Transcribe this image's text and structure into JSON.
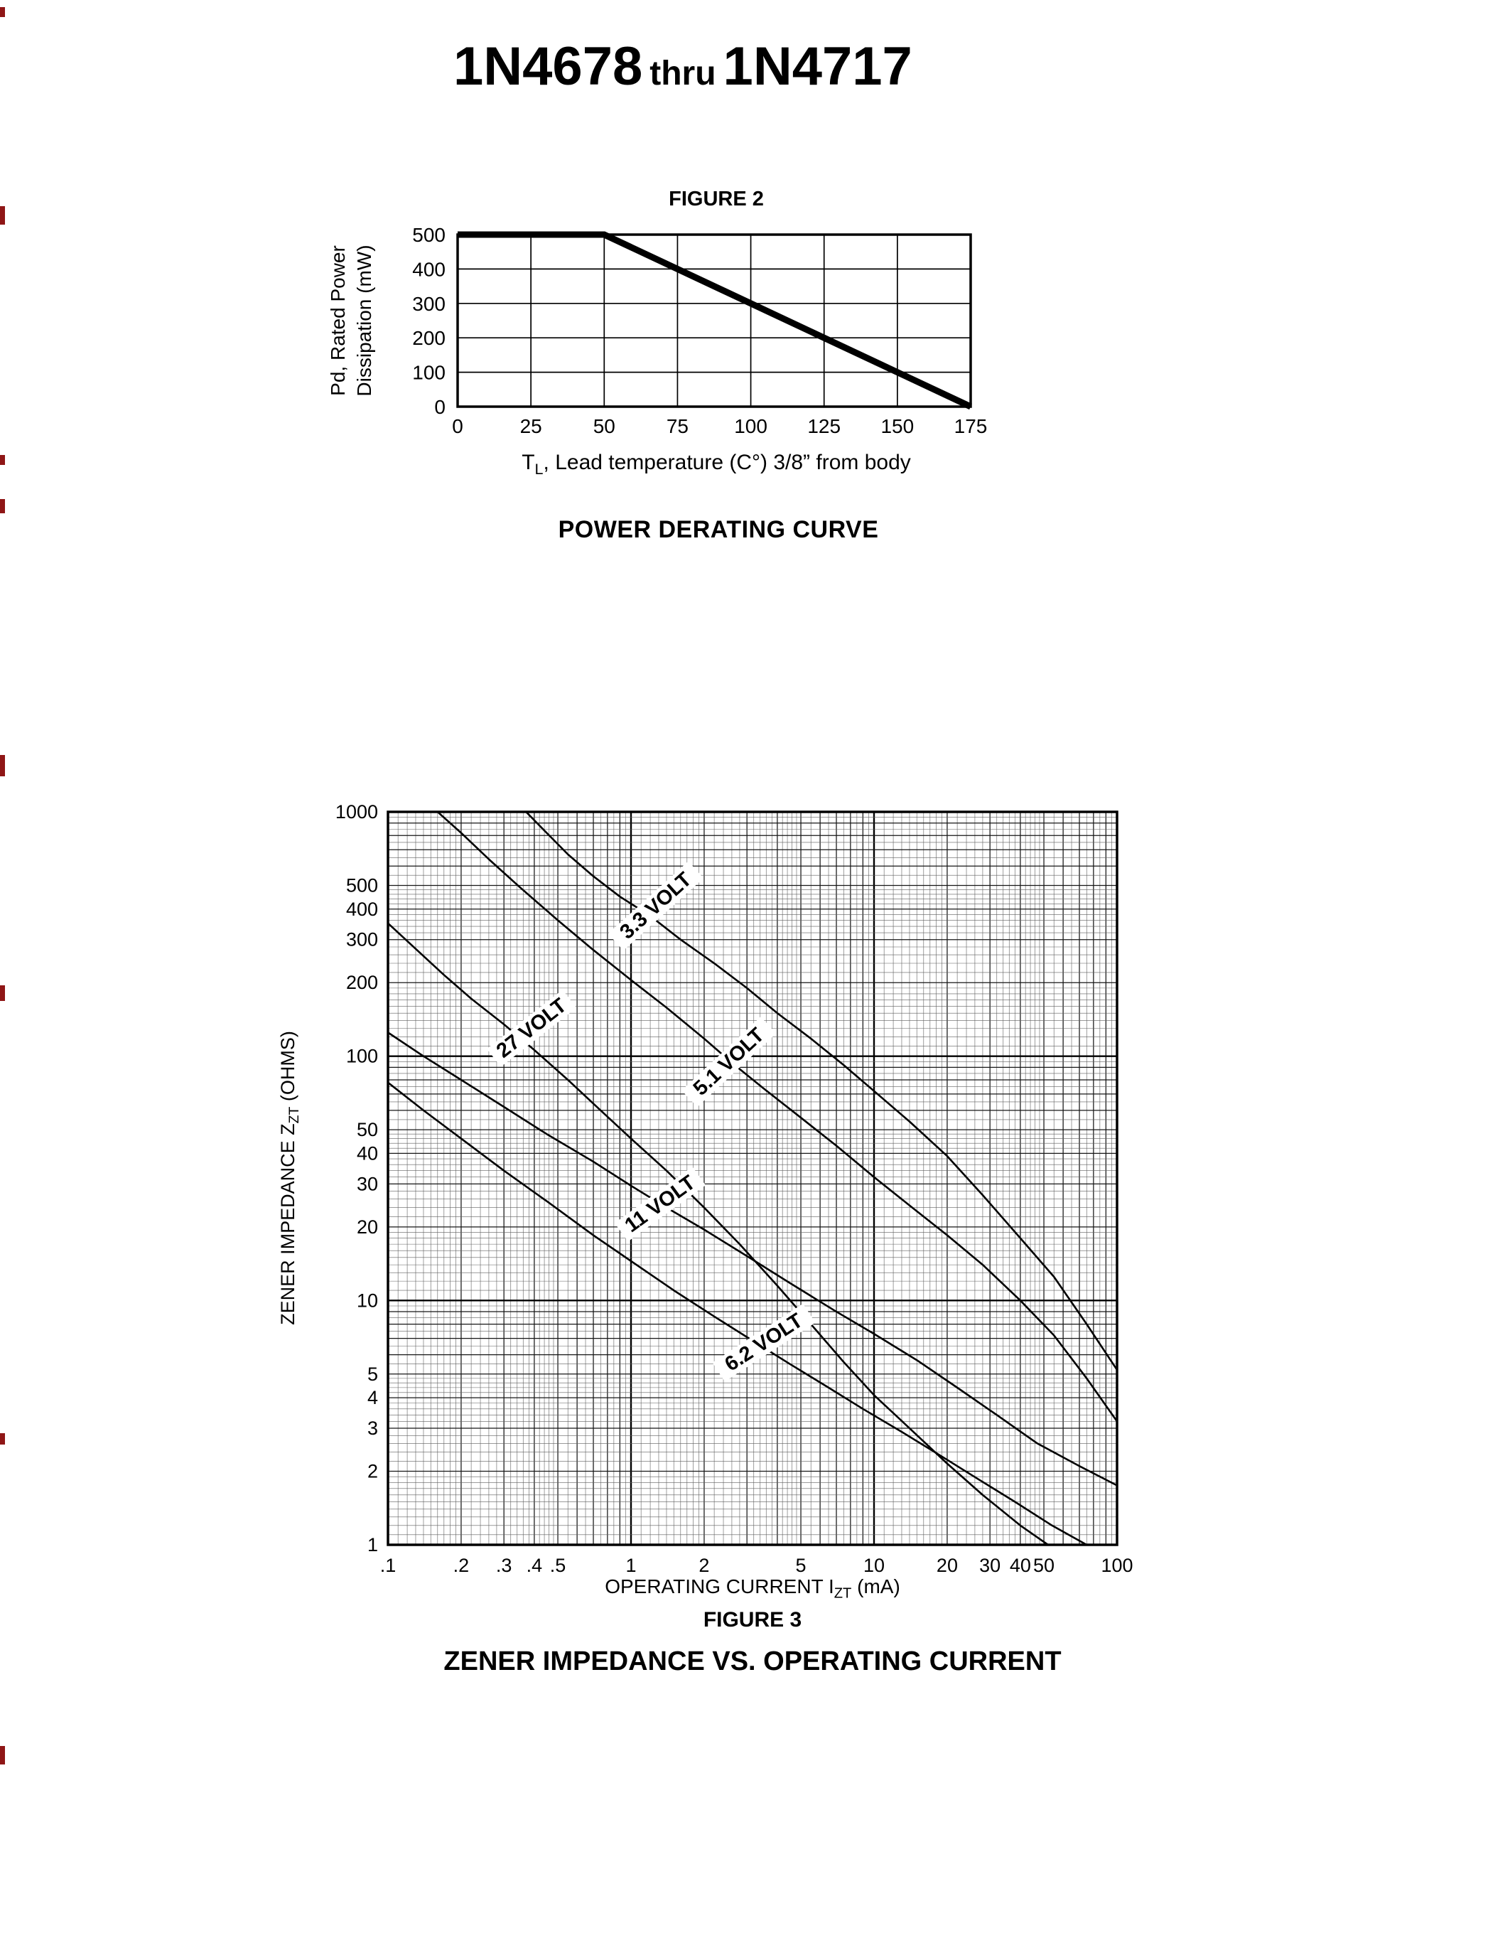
{
  "page": {
    "title": {
      "part1": "1N4678",
      "thru": "thru",
      "part2": "1N4717"
    },
    "artifact_color": "#8f1616",
    "artifacts": [
      {
        "y": 10,
        "h": 14
      },
      {
        "y": 290,
        "h": 26
      },
      {
        "y": 640,
        "h": 14
      },
      {
        "y": 702,
        "h": 20
      },
      {
        "y": 1062,
        "h": 30
      },
      {
        "y": 1386,
        "h": 22
      },
      {
        "y": 2016,
        "h": 16
      },
      {
        "y": 2456,
        "h": 26
      }
    ]
  },
  "figure2": {
    "title": "FIGURE 2",
    "ylabel_line1": "Pd, Rated Power",
    "ylabel_line2": "Dissipation (mW)",
    "xlabel_pre": "T",
    "xlabel_sub": "L",
    "xlabel_post": ", Lead temperature (C°) 3/8” from body",
    "caption": "POWER DERATING CURVE"
  },
  "figure3": {
    "title": "FIGURE 3",
    "ylabel_pre": "ZENER IMPEDANCE Z",
    "ylabel_sub": "ZT",
    "ylabel_post": " (OHMS)",
    "xlabel_pre": "OPERATING CURRENT I",
    "xlabel_sub": "ZT",
    "xlabel_post": " (mA)",
    "caption": "ZENER IMPEDANCE VS. OPERATING CURRENT"
  },
  "chart_data": [
    {
      "type": "line",
      "title": "FIGURE 2",
      "caption": "POWER DERATING CURVE",
      "xlabel": "TL, Lead temperature (C°) 3/8” from body",
      "ylabel": "Pd, Rated Power Dissipation (mW)",
      "x_scale": "linear",
      "y_scale": "linear",
      "xlim": [
        0,
        175
      ],
      "ylim": [
        0,
        500
      ],
      "x_ticks": [
        0,
        25,
        50,
        75,
        100,
        125,
        150,
        175
      ],
      "y_ticks": [
        500,
        400,
        300,
        200,
        100,
        0
      ],
      "grid": true,
      "series": [
        {
          "name": "rated-power-derating",
          "points": [
            [
              0,
              500
            ],
            [
              50,
              500
            ],
            [
              175,
              0
            ]
          ]
        }
      ]
    },
    {
      "type": "line",
      "title": "FIGURE 3",
      "caption": "ZENER IMPEDANCE VS. OPERATING CURRENT",
      "xlabel": "OPERATING CURRENT IZT (mA)",
      "ylabel": "ZENER IMPEDANCE ZZT (OHMS)",
      "x_scale": "log",
      "y_scale": "log",
      "xlim": [
        0.1,
        100
      ],
      "ylim": [
        1,
        1000
      ],
      "x_ticks": [
        0.1,
        0.2,
        0.3,
        0.4,
        0.5,
        1,
        2,
        5,
        10,
        20,
        30,
        40,
        50,
        100
      ],
      "x_tick_labels": [
        ".1",
        ".2",
        ".3",
        ".4",
        ".5",
        "1",
        "2",
        "5",
        "10",
        "20",
        "30",
        "40",
        "50",
        "100"
      ],
      "y_ticks": [
        1000,
        500,
        400,
        300,
        200,
        100,
        50,
        40,
        30,
        20,
        10,
        5,
        4,
        3,
        2,
        1
      ],
      "grid": "log-fine",
      "series": [
        {
          "name": "3.3-volt",
          "label": "3.3 VOLT",
          "label_at": [
            1.3,
            400
          ],
          "label_angle": -42,
          "points": [
            [
              0.37,
              1000
            ],
            [
              0.45,
              820
            ],
            [
              0.55,
              670
            ],
            [
              0.7,
              545
            ],
            [
              0.9,
              450
            ],
            [
              1.2,
              375
            ],
            [
              1.6,
              300
            ],
            [
              2.2,
              240
            ],
            [
              3,
              190
            ],
            [
              4,
              150
            ],
            [
              5.5,
              118
            ],
            [
              7.5,
              92
            ],
            [
              10,
              72
            ],
            [
              14,
              54
            ],
            [
              20,
              39
            ],
            [
              28,
              27
            ],
            [
              40,
              18
            ],
            [
              55,
              12.5
            ],
            [
              75,
              8
            ],
            [
              100,
              5.2
            ]
          ]
        },
        {
          "name": "5.1-volt",
          "label": "5.1 VOLT",
          "label_at": [
            2.6,
            92
          ],
          "label_angle": -43,
          "points": [
            [
              0.16,
              1000
            ],
            [
              0.2,
              820
            ],
            [
              0.26,
              640
            ],
            [
              0.35,
              490
            ],
            [
              0.5,
              360
            ],
            [
              0.7,
              272
            ],
            [
              1,
              205
            ],
            [
              1.4,
              158
            ],
            [
              2,
              118
            ],
            [
              2.6,
              94
            ],
            [
              3.5,
              74
            ],
            [
              5,
              56
            ],
            [
              7,
              43
            ],
            [
              10,
              32
            ],
            [
              14,
              24.5
            ],
            [
              20,
              18.5
            ],
            [
              28,
              14
            ],
            [
              40,
              10
            ],
            [
              55,
              7.2
            ],
            [
              75,
              4.8
            ],
            [
              100,
              3.2
            ]
          ]
        },
        {
          "name": "27-volt",
          "label": "27 VOLT",
          "label_at": [
            0.4,
            126
          ],
          "label_angle": -38,
          "points": [
            [
              0.1,
              350
            ],
            [
              0.13,
              275
            ],
            [
              0.17,
              215
            ],
            [
              0.22,
              172
            ],
            [
              0.3,
              135
            ],
            [
              0.4,
              106
            ],
            [
              0.55,
              80
            ],
            [
              0.75,
              60
            ],
            [
              1,
              46
            ],
            [
              1.4,
              34
            ],
            [
              2,
              24
            ],
            [
              2.8,
              17
            ],
            [
              4,
              11.5
            ],
            [
              5.5,
              8
            ],
            [
              7.5,
              5.6
            ],
            [
              10,
              4.1
            ],
            [
              14,
              3.0
            ],
            [
              20,
              2.15
            ],
            [
              28,
              1.6
            ],
            [
              40,
              1.2
            ],
            [
              52,
              1.0
            ]
          ]
        },
        {
          "name": "11-volt",
          "label": "11 VOLT",
          "label_at": [
            1.35,
            24
          ],
          "label_angle": -36,
          "points": [
            [
              0.1,
              125
            ],
            [
              0.14,
              100
            ],
            [
              0.2,
              80
            ],
            [
              0.3,
              62
            ],
            [
              0.45,
              48
            ],
            [
              0.7,
              37
            ],
            [
              1,
              29.5
            ],
            [
              1.4,
              24
            ],
            [
              2,
              19.5
            ],
            [
              3,
              15.2
            ],
            [
              4.5,
              11.8
            ],
            [
              7,
              9.0
            ],
            [
              10,
              7.3
            ],
            [
              15,
              5.7
            ],
            [
              22,
              4.4
            ],
            [
              32,
              3.4
            ],
            [
              47,
              2.6
            ],
            [
              70,
              2.1
            ],
            [
              100,
              1.75
            ]
          ]
        },
        {
          "name": "6.2-volt",
          "label": "6.2 VOLT",
          "label_at": [
            3.6,
            6.5
          ],
          "label_angle": -33,
          "points": [
            [
              0.1,
              78
            ],
            [
              0.14,
              60
            ],
            [
              0.2,
              46
            ],
            [
              0.3,
              34
            ],
            [
              0.45,
              25.5
            ],
            [
              0.7,
              18.5
            ],
            [
              1,
              14.5
            ],
            [
              1.5,
              11
            ],
            [
              2.2,
              8.6
            ],
            [
              3.2,
              6.8
            ],
            [
              4.5,
              5.5
            ],
            [
              6.5,
              4.4
            ],
            [
              9,
              3.6
            ],
            [
              13,
              2.9
            ],
            [
              19,
              2.3
            ],
            [
              27,
              1.85
            ],
            [
              38,
              1.5
            ],
            [
              54,
              1.2
            ],
            [
              75,
              1.0
            ]
          ]
        }
      ]
    }
  ]
}
